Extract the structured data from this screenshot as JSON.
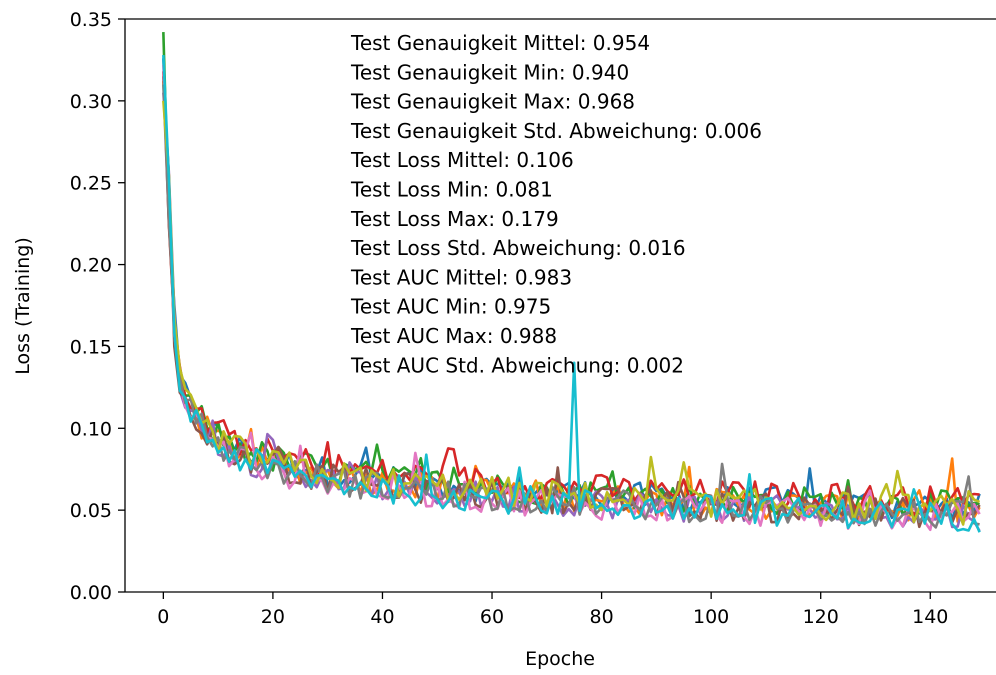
{
  "chart_data": {
    "type": "line",
    "xlabel": "Epoche",
    "ylabel": "Loss (Training)",
    "xlim": [
      -7,
      152
    ],
    "ylim": [
      0,
      0.35
    ],
    "xticks": [
      0,
      20,
      40,
      60,
      80,
      100,
      120,
      140
    ],
    "yticks": [
      0.0,
      0.05,
      0.1,
      0.15,
      0.2,
      0.25,
      0.3,
      0.35
    ],
    "ytick_labels": [
      "0.00",
      "0.05",
      "0.10",
      "0.15",
      "0.20",
      "0.25",
      "0.30",
      "0.35"
    ],
    "grid": false,
    "legend": "none",
    "series_count": 10,
    "epochs": 150,
    "colors": [
      "#1f77b4",
      "#ff7f0e",
      "#2ca02c",
      "#d62728",
      "#9467bd",
      "#8c564b",
      "#e377c2",
      "#7f7f7f",
      "#bcbd22",
      "#17becf"
    ],
    "key_points": {
      "x": [
        0,
        1,
        2,
        3,
        5,
        8,
        12,
        20,
        30,
        40,
        50,
        60,
        70,
        80,
        90,
        100,
        110,
        120,
        130,
        140,
        149
      ],
      "y": [
        0.33,
        0.23,
        0.15,
        0.125,
        0.108,
        0.095,
        0.085,
        0.075,
        0.068,
        0.064,
        0.061,
        0.058,
        0.056,
        0.054,
        0.052,
        0.051,
        0.05,
        0.049,
        0.048,
        0.047,
        0.046
      ]
    },
    "initial_values": [
      0.326,
      0.312,
      0.342,
      0.318,
      0.305,
      0.315,
      0.322,
      0.31,
      0.3,
      0.328
    ],
    "spike": {
      "series_index": 9,
      "x": 75,
      "y": 0.14
    },
    "annotations": [
      "Test Genauigkeit Mittel: 0.954",
      "Test Genauigkeit Min: 0.940",
      "Test Genauigkeit Max: 0.968",
      "Test Genauigkeit Std. Abweichung: 0.006",
      "Test Loss Mittel: 0.106",
      "Test Loss Min: 0.081",
      "Test Loss Max: 0.179",
      "Test Loss Std. Abweichung: 0.016",
      "Test AUC Mittel: 0.983",
      "Test AUC Min: 0.975",
      "Test AUC Max: 0.988",
      "Test AUC Std. Abweichung: 0.002"
    ]
  }
}
